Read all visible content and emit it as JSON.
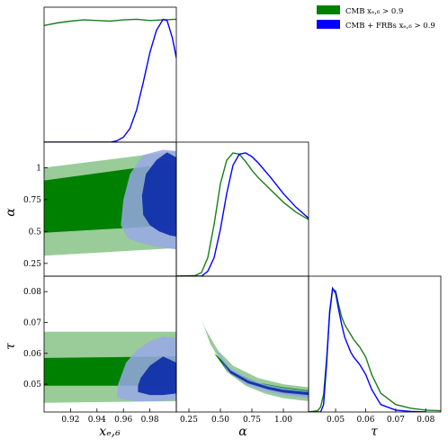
{
  "chart_data": {
    "type": "triangle-corner-plot",
    "legend": {
      "placement": "top-right",
      "entries": [
        {
          "label": "CMB xₑ,₆ > 0.9",
          "color": "#008000"
        },
        {
          "label": "CMB + FRBs xₑ,₆ > 0.9",
          "color": "#0000ff"
        }
      ]
    },
    "parameters": [
      {
        "key": "xe6",
        "label": "xₑ,₆",
        "range": [
          0.9,
          1.0
        ],
        "ticks": [
          0.92,
          0.94,
          0.96,
          0.98
        ],
        "tick_labels": [
          "0.92",
          "0.94",
          "0.96",
          "0.98"
        ]
      },
      {
        "key": "alpha",
        "label": "α",
        "range": [
          0.15,
          1.2
        ],
        "ticks": [
          0.25,
          0.5,
          0.75,
          1.0
        ],
        "tick_labels": [
          "0.25",
          "0.50",
          "0.75",
          "1.00"
        ]
      },
      {
        "key": "tau",
        "label": "τ",
        "range": [
          0.041,
          0.085
        ],
        "ticks": [
          0.05,
          0.06,
          0.07,
          0.08
        ],
        "tick_labels": [
          "0.05",
          "0.06",
          "0.07",
          "0.08"
        ]
      }
    ],
    "alpha_row_ticks": [
      0.25,
      0.5,
      0.75,
      1.0
    ],
    "alpha_row_tick_labels": [
      "0.25",
      "0.5",
      "0.75",
      "1"
    ],
    "tau_row_ticks": [
      0.05,
      0.06,
      0.07,
      0.08
    ],
    "tau_row_tick_labels": [
      "0.05",
      "0.06",
      "0.07",
      "0.08"
    ],
    "marginals": {
      "xe6": {
        "cmb": {
          "x": [
            0.9,
            0.91,
            0.92,
            0.93,
            0.94,
            0.95,
            0.96,
            0.97,
            0.98,
            0.99,
            1.0
          ],
          "y": [
            0.94,
            0.96,
            0.975,
            0.985,
            0.98,
            0.975,
            0.985,
            0.99,
            0.98,
            0.985,
            0.99
          ]
        },
        "cmb_frb": {
          "x": [
            0.9,
            0.95,
            0.955,
            0.96,
            0.965,
            0.97,
            0.975,
            0.98,
            0.985,
            0.99,
            0.993,
            0.997,
            1.0
          ],
          "y": [
            0.0,
            0.0,
            0.01,
            0.04,
            0.11,
            0.26,
            0.48,
            0.72,
            0.9,
            0.99,
            0.98,
            0.84,
            0.68
          ]
        }
      },
      "alpha": {
        "cmb": {
          "x": [
            0.15,
            0.3,
            0.35,
            0.4,
            0.45,
            0.5,
            0.55,
            0.6,
            0.65,
            0.7,
            0.75,
            0.8,
            0.9,
            1.0,
            1.1,
            1.2
          ],
          "y": [
            0.0,
            0.005,
            0.03,
            0.15,
            0.42,
            0.75,
            0.94,
            1.0,
            0.99,
            0.93,
            0.86,
            0.8,
            0.7,
            0.6,
            0.52,
            0.46
          ]
        },
        "cmb_frb": {
          "x": [
            0.15,
            0.35,
            0.4,
            0.45,
            0.5,
            0.55,
            0.6,
            0.65,
            0.7,
            0.75,
            0.8,
            0.9,
            1.0,
            1.1,
            1.2
          ],
          "y": [
            0.0,
            0.0,
            0.04,
            0.15,
            0.38,
            0.67,
            0.9,
            0.99,
            1.0,
            0.97,
            0.92,
            0.8,
            0.67,
            0.56,
            0.47
          ]
        }
      },
      "tau": {
        "cmb": {
          "x": [
            0.041,
            0.044,
            0.045,
            0.046,
            0.047,
            0.048,
            0.049,
            0.05,
            0.051,
            0.052,
            0.053,
            0.054,
            0.055,
            0.056,
            0.058,
            0.06,
            0.062,
            0.065,
            0.07,
            0.075,
            0.08,
            0.085
          ],
          "y": [
            0.0,
            0.01,
            0.04,
            0.14,
            0.42,
            0.78,
            0.98,
            0.97,
            0.86,
            0.76,
            0.7,
            0.66,
            0.62,
            0.58,
            0.52,
            0.44,
            0.3,
            0.15,
            0.06,
            0.03,
            0.015,
            0.01
          ]
        },
        "cmb_frb": {
          "x": [
            0.041,
            0.045,
            0.046,
            0.047,
            0.048,
            0.049,
            0.05,
            0.051,
            0.052,
            0.053,
            0.054,
            0.055,
            0.056,
            0.058,
            0.06,
            0.062,
            0.065,
            0.07,
            0.075,
            0.08
          ],
          "y": [
            0.0,
            0.0,
            0.06,
            0.38,
            0.8,
            0.99,
            0.95,
            0.82,
            0.7,
            0.6,
            0.54,
            0.48,
            0.44,
            0.38,
            0.3,
            0.18,
            0.06,
            0.015,
            0.005,
            0.0
          ]
        }
      }
    },
    "contours": {
      "xe6_alpha": {
        "cmb_95": {
          "x": [
            0.9,
            1.0,
            1.0,
            0.9
          ],
          "y": [
            0.31,
            0.37,
            1.13,
            1.0
          ]
        },
        "cmb_68": {
          "x": [
            0.9,
            1.0,
            1.0,
            0.9
          ],
          "y": [
            0.49,
            0.55,
            1.04,
            0.9
          ]
        },
        "frb_95": {
          "x": [
            0.963,
            0.97,
            0.985,
            1.0,
            1.0,
            0.99,
            0.975,
            0.965,
            0.96,
            0.958
          ],
          "y": [
            0.45,
            0.42,
            0.38,
            0.36,
            1.13,
            1.14,
            1.1,
            0.95,
            0.75,
            0.55
          ]
        },
        "frb_68": {
          "x": [
            0.98,
            0.987,
            0.995,
            1.0,
            1.0,
            0.993,
            0.985,
            0.977,
            0.974,
            0.975
          ],
          "y": [
            0.55,
            0.5,
            0.47,
            0.46,
            1.08,
            1.12,
            1.06,
            0.95,
            0.78,
            0.63
          ]
        }
      },
      "xe6_tau": {
        "cmb_95": {
          "x": [
            0.9,
            1.0,
            1.0,
            0.9
          ],
          "y": [
            0.044,
            0.0445,
            0.067,
            0.067
          ]
        },
        "cmb_68": {
          "x": [
            0.9,
            1.0,
            1.0,
            0.9
          ],
          "y": [
            0.0495,
            0.0495,
            0.059,
            0.0585
          ]
        },
        "frb_95": {
          "x": [
            0.955,
            0.96,
            0.97,
            0.985,
            1.0,
            1.0,
            0.99,
            0.98,
            0.97,
            0.962,
            0.956
          ],
          "y": [
            0.046,
            0.045,
            0.0445,
            0.0445,
            0.045,
            0.065,
            0.0655,
            0.064,
            0.061,
            0.057,
            0.05
          ]
        },
        "frb_68": {
          "x": [
            0.971,
            0.98,
            0.99,
            1.0,
            1.0,
            0.99,
            0.98,
            0.973,
            0.971
          ],
          "y": [
            0.0475,
            0.0465,
            0.0465,
            0.047,
            0.057,
            0.059,
            0.056,
            0.052,
            0.0495
          ]
        }
      },
      "alpha_tau": {
        "cmb_95": {
          "x": [
            0.35,
            0.42,
            0.55,
            0.7,
            0.85,
            1.0,
            1.2,
            1.2,
            1.0,
            0.8,
            0.6,
            0.48,
            0.38,
            0.35
          ],
          "y": [
            0.071,
            0.063,
            0.054,
            0.0495,
            0.047,
            0.0455,
            0.0445,
            0.049,
            0.05,
            0.052,
            0.056,
            0.061,
            0.068,
            0.071
          ]
        },
        "cmb_68": {
          "x": [
            0.45,
            0.55,
            0.7,
            0.85,
            1.0,
            1.2,
            1.2,
            1.0,
            0.8,
            0.6,
            0.48,
            0.45
          ],
          "y": [
            0.06,
            0.0545,
            0.051,
            0.0485,
            0.047,
            0.046,
            0.048,
            0.049,
            0.0505,
            0.054,
            0.059,
            0.06
          ]
        },
        "frb_95": {
          "x": [
            0.46,
            0.55,
            0.7,
            0.85,
            1.0,
            1.2,
            1.2,
            1.0,
            0.85,
            0.7,
            0.57,
            0.48,
            0.46
          ],
          "y": [
            0.0615,
            0.0545,
            0.05,
            0.0478,
            0.0465,
            0.0455,
            0.0478,
            0.0488,
            0.05,
            0.0522,
            0.0555,
            0.0605,
            0.0615
          ]
        },
        "frb_68": {
          "x": [
            0.49,
            0.58,
            0.72,
            0.88,
            1.0,
            1.2,
            1.2,
            1.0,
            0.88,
            0.72,
            0.58,
            0.5,
            0.49
          ],
          "y": [
            0.0585,
            0.0535,
            0.0503,
            0.0483,
            0.0473,
            0.0465,
            0.0474,
            0.0482,
            0.0492,
            0.0512,
            0.0545,
            0.0582,
            0.0585
          ]
        }
      }
    },
    "colors": {
      "cmb_95": "#99cc99",
      "cmb_68": "#008000",
      "frb_95": "#99a8e6",
      "frb_68": "#0a2aa8",
      "cmb_line": "#1a7d1a",
      "frb_line": "#0000ff"
    }
  }
}
